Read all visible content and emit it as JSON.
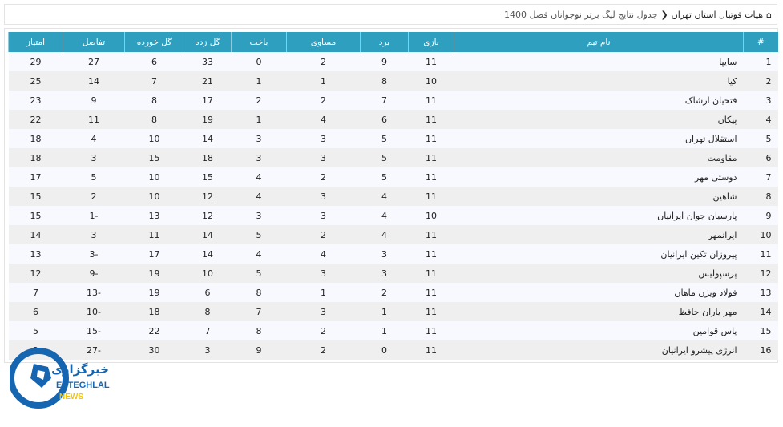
{
  "breadcrumb": {
    "home": "هیات فوتبال استان تهران",
    "current": "جدول نتایج لیگ برتر نوجوانان فصل 1400"
  },
  "columns": [
    "#",
    "نام تیم",
    "بازی",
    "برد",
    "مساوی",
    "باخت",
    "گل زده",
    "گل خورده",
    "تفاضل",
    "امتیاز"
  ],
  "rows": [
    [
      "1",
      "سایپا",
      "11",
      "9",
      "2",
      "0",
      "33",
      "6",
      "27",
      "29"
    ],
    [
      "2",
      "کیا",
      "10",
      "8",
      "1",
      "1",
      "21",
      "7",
      "14",
      "25"
    ],
    [
      "3",
      "فتحیان ارشاک",
      "11",
      "7",
      "2",
      "2",
      "17",
      "8",
      "9",
      "23"
    ],
    [
      "4",
      "پیکان",
      "11",
      "6",
      "4",
      "1",
      "19",
      "8",
      "11",
      "22"
    ],
    [
      "5",
      "استقلال تهران",
      "11",
      "5",
      "3",
      "3",
      "14",
      "10",
      "4",
      "18"
    ],
    [
      "6",
      "مقاومت",
      "11",
      "5",
      "3",
      "3",
      "18",
      "15",
      "3",
      "18"
    ],
    [
      "7",
      "دوستی مهر",
      "11",
      "5",
      "2",
      "4",
      "15",
      "10",
      "5",
      "17"
    ],
    [
      "8",
      "شاهین",
      "11",
      "4",
      "3",
      "4",
      "12",
      "10",
      "2",
      "15"
    ],
    [
      "9",
      "پارسیان جوان ایرانیان",
      "10",
      "4",
      "3",
      "3",
      "12",
      "13",
      "-1",
      "15"
    ],
    [
      "10",
      "ایرانمهر",
      "11",
      "4",
      "2",
      "5",
      "14",
      "11",
      "3",
      "14"
    ],
    [
      "11",
      "پیروزان تکین ایرانیان",
      "11",
      "3",
      "4",
      "4",
      "14",
      "17",
      "-3",
      "13"
    ],
    [
      "12",
      "پرسپولیس",
      "11",
      "3",
      "3",
      "5",
      "10",
      "19",
      "-9",
      "12"
    ],
    [
      "13",
      "فولاد ویژن ماهان",
      "11",
      "2",
      "1",
      "8",
      "6",
      "19",
      "-13",
      "7"
    ],
    [
      "14",
      "مهر یاران حافظ",
      "11",
      "1",
      "3",
      "7",
      "8",
      "18",
      "-10",
      "6"
    ],
    [
      "15",
      "پاس قوامین",
      "11",
      "1",
      "2",
      "8",
      "7",
      "22",
      "-15",
      "5"
    ],
    [
      "16",
      "انرژی پیشرو ایرانیان",
      "11",
      "0",
      "2",
      "9",
      "3",
      "30",
      "-27",
      "2"
    ]
  ],
  "logo": {
    "text": "خبرگزاری",
    "line1": "ESTEGHLAL",
    "line2": "NEWS"
  },
  "colors": {
    "header": "#2e9fbf",
    "logo_blue": "#1565b0",
    "logo_yellow": "#f2c500"
  }
}
